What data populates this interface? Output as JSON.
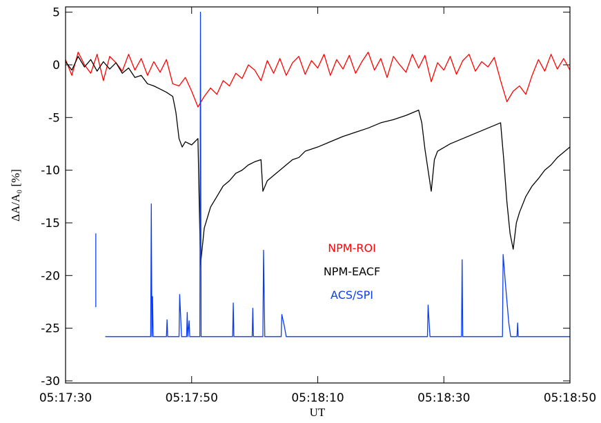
{
  "chart_data": {
    "type": "line",
    "xlabel": "UT",
    "ylabel": "ΔA/A₀ [%]",
    "xlim": [
      19050,
      19130
    ],
    "xticks": [
      {
        "value": 19050,
        "label": "05:17:30"
      },
      {
        "value": 19070,
        "label": "05:17:50"
      },
      {
        "value": 19090,
        "label": "05:18:10"
      },
      {
        "value": 19110,
        "label": "05:18:30"
      },
      {
        "value": 19130,
        "label": "05:18:50"
      }
    ],
    "ylim": [
      -30.2,
      5.5
    ],
    "yticks": [
      5,
      0,
      -5,
      -10,
      -15,
      -20,
      -25,
      -30
    ],
    "legend": "center",
    "series": [
      {
        "name": "NPM-ROI",
        "color": "#ff0000",
        "x": [
          19050,
          19051,
          19052,
          19053,
          19054,
          19055,
          19056,
          19057,
          19058,
          19059,
          19060,
          19061,
          19062,
          19063,
          19064,
          19065,
          19066,
          19067,
          19068,
          19069,
          19070,
          19071,
          19072,
          19073,
          19074,
          19075,
          19076,
          19077,
          19078,
          19079,
          19080,
          19081,
          19082,
          19083,
          19084,
          19085,
          19086,
          19087,
          19088,
          19089,
          19090,
          19091,
          19092,
          19093,
          19094,
          19095,
          19096,
          19097,
          19098,
          19099,
          19100,
          19101,
          19102,
          19103,
          19104,
          19105,
          19106,
          19107,
          19108,
          19109,
          19110,
          19111,
          19112,
          19113,
          19114,
          19115,
          19116,
          19117,
          19118,
          19119,
          19120,
          19121,
          19122,
          19123,
          19124,
          19125,
          19126,
          19127,
          19128,
          19129,
          19130
        ],
        "values": [
          0.5,
          -1,
          1.2,
          0,
          -0.8,
          1,
          -1.5,
          0.8,
          0.2,
          -0.6,
          1,
          -0.5,
          0.6,
          -1,
          0.3,
          -0.7,
          0.5,
          -1.8,
          -2,
          -1.2,
          -2.5,
          -4,
          -3,
          -2.2,
          -2.8,
          -1.5,
          -2,
          -0.8,
          -1.3,
          0,
          -0.5,
          -1.5,
          0.4,
          -0.8,
          0.6,
          -1,
          0.2,
          0.8,
          -0.9,
          0.4,
          -0.3,
          1,
          -1,
          0.5,
          -0.4,
          0.9,
          -0.8,
          0.3,
          1.2,
          -0.5,
          0.6,
          -1.2,
          0.8,
          0,
          -0.7,
          1,
          -0.3,
          0.9,
          -1.6,
          0.2,
          -0.5,
          0.8,
          -0.9,
          0.4,
          1,
          -0.6,
          0.3,
          -0.2,
          0.7,
          -1.5,
          -3.5,
          -2.5,
          -2,
          -2.8,
          -1,
          0.5,
          -0.6,
          1,
          -0.4,
          0.6,
          -0.5
        ]
      },
      {
        "name": "NPM-EACF",
        "color": "#000000",
        "x": [
          19050,
          19051,
          19052,
          19053,
          19054,
          19055,
          19056,
          19057,
          19058,
          19059,
          19060,
          19061,
          19062,
          19063,
          19064,
          19065,
          19066,
          19067,
          19067.5,
          19068,
          19068.5,
          19069,
          19070,
          19071,
          19071.4,
          19072,
          19073,
          19074,
          19075,
          19076,
          19077,
          19078,
          19079,
          19080,
          19081,
          19081.3,
          19082,
          19083,
          19084,
          19085,
          19086,
          19087,
          19088,
          19090,
          19092,
          19094,
          19096,
          19098,
          19100,
          19102,
          19104,
          19106,
          19106.5,
          19107,
          19108,
          19108.5,
          19109,
          19111,
          19113,
          19115,
          19117,
          19119,
          19119.5,
          19120,
          19120.5,
          19121,
          19121.5,
          19122,
          19123,
          19124,
          19125,
          19126,
          19127,
          19128,
          19129,
          19130
        ],
        "values": [
          0.3,
          -0.5,
          0.8,
          -0.2,
          0.5,
          -0.6,
          0.3,
          -0.4,
          0.2,
          -0.8,
          -0.3,
          -1.2,
          -1,
          -1.8,
          -2,
          -2.3,
          -2.6,
          -3,
          -4.5,
          -7,
          -7.8,
          -7.3,
          -7.6,
          -7,
          -19,
          -15.5,
          -13.5,
          -12.5,
          -11.5,
          -11,
          -10.3,
          -10,
          -9.5,
          -9.2,
          -9,
          -12,
          -11,
          -10.5,
          -10,
          -9.5,
          -9,
          -8.8,
          -8.2,
          -7.8,
          -7.3,
          -6.8,
          -6.4,
          -6,
          -5.5,
          -5.2,
          -4.8,
          -4.3,
          -5.5,
          -8,
          -12,
          -9,
          -8.2,
          -7.5,
          -7,
          -6.5,
          -6,
          -5.5,
          -9,
          -13,
          -16,
          -17.5,
          -15,
          -14,
          -12.5,
          -11.5,
          -10.8,
          -10,
          -9.5,
          -8.8,
          -8.3,
          -7.8
        ]
      },
      {
        "name": "ACS/SPI",
        "color": "#0a3cf0",
        "x": [
          19054.8,
          19054.8,
          null,
          19056.3,
          19063.5,
          19063.6,
          19063.7,
          19063.8,
          19063.9,
          19066,
          19066.1,
          19066.2,
          19068,
          19068.1,
          19068.4,
          19069.2,
          19069.3,
          19069.4,
          19069.6,
          19069.7,
          19071.3,
          19071.4,
          19071.5,
          19076.5,
          19076.6,
          19076.7,
          19079.6,
          19079.7,
          19079.8,
          19081.3,
          19081.4,
          19081.6,
          19084.2,
          19084.3,
          19084.7,
          19085,
          19107.4,
          19107.5,
          19107.8,
          19112.8,
          19112.9,
          19113,
          19119.3,
          19119.4,
          19119.8,
          19120.3,
          19120.6,
          19121.6,
          19121.7,
          19121.8,
          19130
        ],
        "values": [
          -16,
          -23,
          null,
          -25.8,
          -25.8,
          -13.2,
          -25.8,
          -22,
          -25.8,
          -25.8,
          -24.2,
          -25.8,
          -25.8,
          -21.8,
          -25.8,
          -25.8,
          -23.5,
          -25.8,
          -24.3,
          -25.8,
          -25.8,
          5,
          -25.8,
          -25.8,
          -22.6,
          -25.8,
          -25.8,
          -23.1,
          -25.8,
          -25.8,
          -17.6,
          -25.8,
          -25.8,
          -23.7,
          -24.8,
          -25.8,
          -25.8,
          -22.8,
          -25.8,
          -25.8,
          -18.5,
          -25.8,
          -25.8,
          -18,
          -21,
          -24.5,
          -25.8,
          -25.8,
          -24.5,
          -25.8,
          -25.8
        ]
      }
    ]
  }
}
